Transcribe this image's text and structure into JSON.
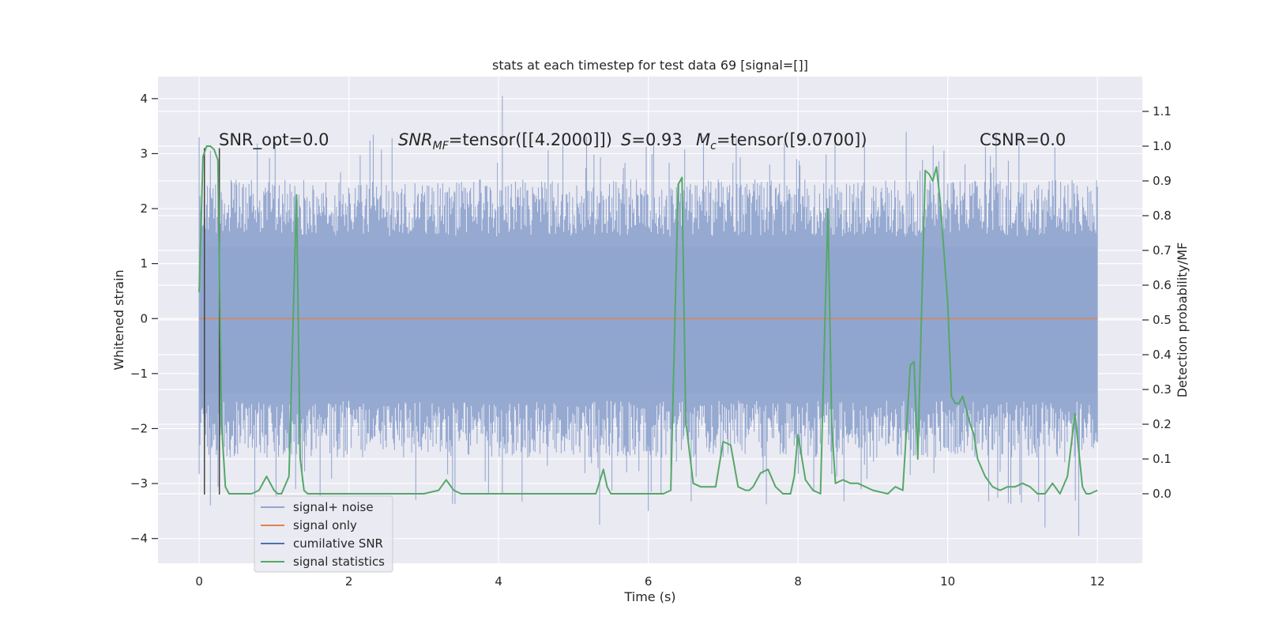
{
  "chart_data": {
    "type": "line",
    "title": "stats at each timestep for test data 69 [signal=[]]",
    "xlabel": "Time (s)",
    "ylabel": "Whitened strain",
    "y2label": "Detection probability/MF",
    "xlim": [
      -0.55,
      12.6
    ],
    "ylim": [
      -4.45,
      4.4
    ],
    "y2lim": [
      -0.2,
      1.2
    ],
    "x_ticks": [
      0,
      2,
      4,
      6,
      8,
      10,
      12
    ],
    "y_ticks": [
      -4,
      -3,
      -2,
      -1,
      0,
      1,
      2,
      3,
      4
    ],
    "y2_ticks": [
      0.0,
      0.1,
      0.2,
      0.3,
      0.4,
      0.5,
      0.6,
      0.7,
      0.8,
      0.9,
      1.0,
      1.1
    ],
    "x_tick_labels": [
      "0",
      "2",
      "4",
      "6",
      "8",
      "10",
      "12"
    ],
    "y_tick_labels": [
      "−4",
      "−3",
      "−2",
      "−1",
      "0",
      "1",
      "2",
      "3",
      "4"
    ],
    "y2_tick_labels": [
      "0.0",
      "0.1",
      "0.2",
      "0.3",
      "0.4",
      "0.5",
      "0.6",
      "0.7",
      "0.8",
      "0.9",
      "1.0",
      "1.1"
    ],
    "grid": true,
    "legend_position": "lower-left",
    "annotations": {
      "snr_opt": "SNR_opt=0.0",
      "snr_mf_prefix": "SNR",
      "snr_mf_sub": "MF",
      "snr_mf_value": "=tensor([[4.2000]])",
      "s_label": "S",
      "s_value": "=0.93",
      "mc_prefix": "M",
      "mc_sub": "c",
      "mc_value": "=tensor([9.0700])",
      "csnr": "CSNR=0.0"
    },
    "series": [
      {
        "name": "signal+ noise",
        "color": "#91a5cf",
        "x_range": [
          0,
          12
        ],
        "envelope": {
          "core_band": [
            -1.35,
            1.3
          ],
          "typical_band": [
            -2.3,
            2.3
          ],
          "max": 4.05,
          "min": -3.95,
          "dense_sticks": 1100
        }
      },
      {
        "name": "signal only",
        "color": "#dd8452",
        "x": [
          0,
          12
        ],
        "y": [
          0,
          0
        ]
      },
      {
        "name": "cumilative SNR",
        "color": "#4c72b0",
        "vlines_x": [
          0.07,
          0.27
        ],
        "vlines_y": [
          -3.2,
          3.1
        ]
      },
      {
        "name": "signal statistics",
        "color": "#55a868",
        "axis": "right",
        "x": [
          0.0,
          0.05,
          0.1,
          0.15,
          0.2,
          0.25,
          0.3,
          0.35,
          0.4,
          0.45,
          0.5,
          0.6,
          0.7,
          0.8,
          0.9,
          1.0,
          1.05,
          1.1,
          1.2,
          1.3,
          1.35,
          1.4,
          1.45,
          1.5,
          1.6,
          1.7,
          1.8,
          2.0,
          2.2,
          2.4,
          2.6,
          2.8,
          3.0,
          3.2,
          3.3,
          3.4,
          3.5,
          3.6,
          3.8,
          4.0,
          4.4,
          4.8,
          5.0,
          5.1,
          5.2,
          5.3,
          5.4,
          5.45,
          5.5,
          5.6,
          5.8,
          6.0,
          6.2,
          6.3,
          6.4,
          6.45,
          6.5,
          6.6,
          6.7,
          6.8,
          6.9,
          7.0,
          7.1,
          7.2,
          7.3,
          7.35,
          7.4,
          7.5,
          7.6,
          7.7,
          7.8,
          7.9,
          7.95,
          8.0,
          8.1,
          8.2,
          8.3,
          8.4,
          8.45,
          8.5,
          8.6,
          8.7,
          8.8,
          8.9,
          9.0,
          9.2,
          9.3,
          9.4,
          9.5,
          9.55,
          9.6,
          9.7,
          9.75,
          9.8,
          9.85,
          9.9,
          10.0,
          10.05,
          10.1,
          10.15,
          10.2,
          10.3,
          10.35,
          10.4,
          10.5,
          10.6,
          10.7,
          10.8,
          10.9,
          11.0,
          11.1,
          11.2,
          11.3,
          11.4,
          11.5,
          11.6,
          11.7,
          11.8,
          11.85,
          11.9,
          12.0
        ],
        "y": [
          0.58,
          0.97,
          1.0,
          1.0,
          0.99,
          0.96,
          0.2,
          0.02,
          0.0,
          0.0,
          0.0,
          0.0,
          0.0,
          0.01,
          0.05,
          0.01,
          0.0,
          0.0,
          0.05,
          0.86,
          0.1,
          0.01,
          0.0,
          0.0,
          0.0,
          0.0,
          0.0,
          0.0,
          0.0,
          0.0,
          0.0,
          0.0,
          0.0,
          0.01,
          0.04,
          0.01,
          0.0,
          0.0,
          0.0,
          0.0,
          0.0,
          0.0,
          0.0,
          0.0,
          0.0,
          0.0,
          0.07,
          0.02,
          0.0,
          0.0,
          0.0,
          0.0,
          0.0,
          0.01,
          0.89,
          0.91,
          0.21,
          0.03,
          0.02,
          0.02,
          0.02,
          0.15,
          0.14,
          0.02,
          0.01,
          0.01,
          0.02,
          0.06,
          0.07,
          0.02,
          0.0,
          0.0,
          0.05,
          0.17,
          0.04,
          0.01,
          0.0,
          0.82,
          0.2,
          0.03,
          0.04,
          0.03,
          0.03,
          0.02,
          0.01,
          0.0,
          0.02,
          0.01,
          0.37,
          0.38,
          0.1,
          0.93,
          0.92,
          0.9,
          0.94,
          0.84,
          0.55,
          0.28,
          0.26,
          0.26,
          0.28,
          0.2,
          0.17,
          0.1,
          0.05,
          0.02,
          0.01,
          0.02,
          0.02,
          0.03,
          0.02,
          0.0,
          0.0,
          0.03,
          0.0,
          0.05,
          0.23,
          0.02,
          0.0,
          0.0,
          0.01
        ]
      }
    ]
  }
}
